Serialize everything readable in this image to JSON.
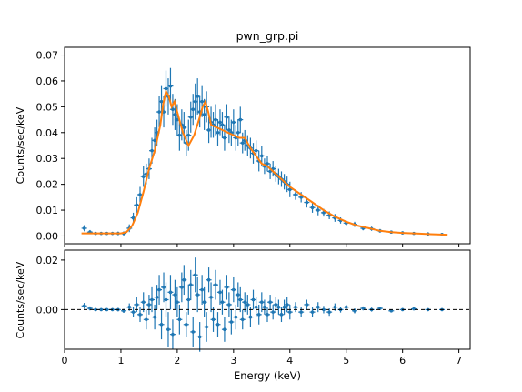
{
  "chart_data": [
    {
      "type": "scatter",
      "title": "pwn_grp.pi",
      "xlabel": "",
      "ylabel": "Counts/sec/keV",
      "xlim": [
        0,
        7.2
      ],
      "ylim": [
        -0.003,
        0.073
      ],
      "xticks": [
        "0",
        "1",
        "2",
        "3",
        "4",
        "5",
        "6",
        "7"
      ],
      "yticks": [
        "0.00",
        "0.01",
        "0.02",
        "0.03",
        "0.04",
        "0.05",
        "0.06",
        "0.07"
      ],
      "colors": {
        "data": "#1f77b4",
        "model": "#ff7f0e"
      },
      "series": [
        {
          "kind": "data-with-error-bars",
          "x": [
            0.35,
            0.45,
            0.55,
            0.65,
            0.75,
            0.85,
            0.95,
            1.05,
            1.15,
            1.22,
            1.28,
            1.34,
            1.4,
            1.45,
            1.5,
            1.55,
            1.6,
            1.64,
            1.68,
            1.72,
            1.76,
            1.8,
            1.84,
            1.88,
            1.92,
            1.96,
            2.0,
            2.04,
            2.08,
            2.12,
            2.16,
            2.2,
            2.24,
            2.28,
            2.32,
            2.36,
            2.4,
            2.44,
            2.48,
            2.52,
            2.56,
            2.6,
            2.64,
            2.68,
            2.72,
            2.76,
            2.8,
            2.84,
            2.88,
            2.92,
            2.96,
            3.0,
            3.04,
            3.08,
            3.12,
            3.16,
            3.2,
            3.25,
            3.3,
            3.35,
            3.4,
            3.45,
            3.5,
            3.55,
            3.6,
            3.65,
            3.7,
            3.75,
            3.8,
            3.85,
            3.9,
            3.95,
            4.0,
            4.1,
            4.2,
            4.3,
            4.4,
            4.5,
            4.6,
            4.7,
            4.8,
            4.9,
            5.0,
            5.15,
            5.3,
            5.45,
            5.6,
            5.8,
            6.0,
            6.2,
            6.45,
            6.7
          ],
          "y": [
            0.003,
            0.0015,
            0.001,
            0.001,
            0.001,
            0.001,
            0.001,
            0.001,
            0.003,
            0.007,
            0.012,
            0.016,
            0.023,
            0.024,
            0.026,
            0.033,
            0.037,
            0.04,
            0.048,
            0.052,
            0.048,
            0.057,
            0.054,
            0.058,
            0.049,
            0.047,
            0.045,
            0.039,
            0.043,
            0.042,
            0.036,
            0.039,
            0.046,
            0.049,
            0.052,
            0.054,
            0.048,
            0.052,
            0.047,
            0.05,
            0.041,
            0.044,
            0.043,
            0.045,
            0.04,
            0.044,
            0.043,
            0.038,
            0.046,
            0.041,
            0.04,
            0.044,
            0.038,
            0.04,
            0.045,
            0.036,
            0.037,
            0.035,
            0.034,
            0.032,
            0.033,
            0.029,
            0.031,
            0.027,
            0.028,
            0.025,
            0.026,
            0.024,
            0.023,
            0.022,
            0.021,
            0.02,
            0.018,
            0.016,
            0.015,
            0.013,
            0.011,
            0.01,
            0.009,
            0.008,
            0.007,
            0.006,
            0.005,
            0.0045,
            0.003,
            0.0028,
            0.002,
            0.0015,
            0.0012,
            0.001,
            0.0008,
            0.0006
          ],
          "yerr": [
            0.0012,
            0.0008,
            0.0006,
            0.0006,
            0.0006,
            0.0006,
            0.0007,
            0.0008,
            0.0015,
            0.002,
            0.003,
            0.003,
            0.004,
            0.004,
            0.004,
            0.005,
            0.005,
            0.005,
            0.006,
            0.006,
            0.006,
            0.007,
            0.007,
            0.007,
            0.006,
            0.006,
            0.006,
            0.006,
            0.006,
            0.006,
            0.005,
            0.006,
            0.006,
            0.006,
            0.007,
            0.007,
            0.006,
            0.006,
            0.006,
            0.006,
            0.005,
            0.006,
            0.005,
            0.006,
            0.005,
            0.005,
            0.005,
            0.005,
            0.005,
            0.005,
            0.005,
            0.005,
            0.005,
            0.005,
            0.005,
            0.004,
            0.004,
            0.004,
            0.004,
            0.004,
            0.004,
            0.004,
            0.004,
            0.003,
            0.003,
            0.003,
            0.003,
            0.003,
            0.003,
            0.003,
            0.003,
            0.003,
            0.003,
            0.002,
            0.002,
            0.002,
            0.002,
            0.002,
            0.0015,
            0.0015,
            0.0015,
            0.0012,
            0.001,
            0.001,
            0.0008,
            0.0008,
            0.0007,
            0.0006,
            0.0006,
            0.0005,
            0.0005,
            0.0004
          ]
        },
        {
          "kind": "model-line",
          "x": [
            0.3,
            1.0,
            1.1,
            1.2,
            1.3,
            1.4,
            1.5,
            1.6,
            1.7,
            1.75,
            1.8,
            1.85,
            1.9,
            1.95,
            2.0,
            2.1,
            2.2,
            2.3,
            2.4,
            2.45,
            2.5,
            2.55,
            2.6,
            2.7,
            2.8,
            2.9,
            3.0,
            3.1,
            3.2,
            3.3,
            3.4,
            3.5,
            3.6,
            3.7,
            3.8,
            3.9,
            4.0,
            4.2,
            4.4,
            4.6,
            4.8,
            5.0,
            5.2,
            5.4,
            5.6,
            5.8,
            6.0,
            6.3,
            6.5,
            6.8
          ],
          "y": [
            0.001,
            0.001,
            0.0015,
            0.004,
            0.009,
            0.017,
            0.026,
            0.033,
            0.043,
            0.051,
            0.056,
            0.054,
            0.05,
            0.052,
            0.048,
            0.04,
            0.035,
            0.039,
            0.046,
            0.05,
            0.052,
            0.048,
            0.043,
            0.042,
            0.041,
            0.04,
            0.039,
            0.038,
            0.038,
            0.034,
            0.031,
            0.028,
            0.027,
            0.025,
            0.023,
            0.021,
            0.019,
            0.016,
            0.013,
            0.01,
            0.0075,
            0.0055,
            0.004,
            0.003,
            0.002,
            0.0015,
            0.0012,
            0.0009,
            0.0007,
            0.0005
          ]
        }
      ]
    },
    {
      "type": "scatter",
      "title": "",
      "xlabel": "Energy (keV)",
      "ylabel": "Counts/sec/keV",
      "xlim": [
        0,
        7.2
      ],
      "ylim": [
        -0.016,
        0.024
      ],
      "xticks": [
        "0",
        "1",
        "2",
        "3",
        "4",
        "5",
        "6",
        "7"
      ],
      "yticks": [
        "0.00",
        "0.02"
      ],
      "colors": {
        "data": "#1f77b4",
        "zero_line": "#000000"
      },
      "series": [
        {
          "kind": "residuals-with-error-bars",
          "x": [
            0.35,
            0.45,
            0.55,
            0.65,
            0.75,
            0.85,
            0.95,
            1.05,
            1.15,
            1.22,
            1.28,
            1.34,
            1.4,
            1.45,
            1.5,
            1.55,
            1.6,
            1.64,
            1.68,
            1.72,
            1.76,
            1.8,
            1.84,
            1.88,
            1.92,
            1.96,
            2.0,
            2.04,
            2.08,
            2.12,
            2.16,
            2.2,
            2.24,
            2.28,
            2.32,
            2.36,
            2.4,
            2.44,
            2.48,
            2.52,
            2.56,
            2.6,
            2.64,
            2.68,
            2.72,
            2.76,
            2.8,
            2.84,
            2.88,
            2.92,
            2.96,
            3.0,
            3.04,
            3.08,
            3.12,
            3.16,
            3.2,
            3.25,
            3.3,
            3.35,
            3.4,
            3.45,
            3.5,
            3.55,
            3.6,
            3.65,
            3.7,
            3.75,
            3.8,
            3.85,
            3.9,
            3.95,
            4.0,
            4.1,
            4.2,
            4.3,
            4.4,
            4.5,
            4.6,
            4.7,
            4.8,
            4.9,
            5.0,
            5.15,
            5.3,
            5.45,
            5.6,
            5.8,
            6.0,
            6.2,
            6.45,
            6.7
          ],
          "y": [
            0.0015,
            0.0005,
            0,
            0,
            0,
            0,
            0,
            -0.0005,
            0.001,
            -0.001,
            0.002,
            -0.002,
            0.003,
            -0.004,
            0.002,
            0.004,
            -0.003,
            0.005,
            0.008,
            -0.006,
            0.009,
            0.004,
            -0.008,
            0.007,
            -0.01,
            0.006,
            0.003,
            -0.004,
            0.009,
            0.012,
            -0.006,
            0.004,
            0.01,
            -0.009,
            0.014,
            0.006,
            -0.011,
            0.008,
            0.003,
            -0.007,
            0.012,
            0.005,
            -0.004,
            0.01,
            -0.006,
            0.007,
            0.003,
            -0.008,
            0.009,
            0.002,
            -0.005,
            0.008,
            -0.003,
            0.006,
            0.004,
            -0.004,
            0.003,
            0.002,
            -0.003,
            0.004,
            0.001,
            -0.002,
            0.003,
            0.001,
            -0.002,
            0.003,
            -0.001,
            0.002,
            0.001,
            -0.002,
            0.001,
            0.002,
            -0.001,
            0.001,
            -0.001,
            0.002,
            -0.001,
            0.001,
            0,
            -0.001,
            0.001,
            0,
            0.001,
            -0.0005,
            0.0005,
            0,
            0.0005,
            -0.0005,
            0,
            0.0003,
            0,
            0
          ],
          "yerr": [
            0.0012,
            0.0008,
            0.0006,
            0.0006,
            0.0006,
            0.0006,
            0.0007,
            0.0008,
            0.0015,
            0.002,
            0.003,
            0.003,
            0.004,
            0.004,
            0.004,
            0.005,
            0.005,
            0.005,
            0.006,
            0.006,
            0.006,
            0.007,
            0.007,
            0.007,
            0.006,
            0.006,
            0.006,
            0.006,
            0.006,
            0.006,
            0.005,
            0.006,
            0.006,
            0.006,
            0.007,
            0.007,
            0.006,
            0.006,
            0.006,
            0.006,
            0.005,
            0.006,
            0.005,
            0.006,
            0.005,
            0.005,
            0.005,
            0.005,
            0.005,
            0.005,
            0.005,
            0.005,
            0.005,
            0.005,
            0.005,
            0.004,
            0.004,
            0.004,
            0.004,
            0.004,
            0.004,
            0.004,
            0.004,
            0.003,
            0.003,
            0.003,
            0.003,
            0.003,
            0.003,
            0.003,
            0.003,
            0.003,
            0.003,
            0.002,
            0.002,
            0.002,
            0.002,
            0.002,
            0.0015,
            0.0015,
            0.0015,
            0.0012,
            0.001,
            0.001,
            0.0008,
            0.0008,
            0.0007,
            0.0006,
            0.0006,
            0.0005,
            0.0005,
            0.0004
          ]
        },
        {
          "kind": "zero-line",
          "y": 0
        }
      ]
    }
  ]
}
